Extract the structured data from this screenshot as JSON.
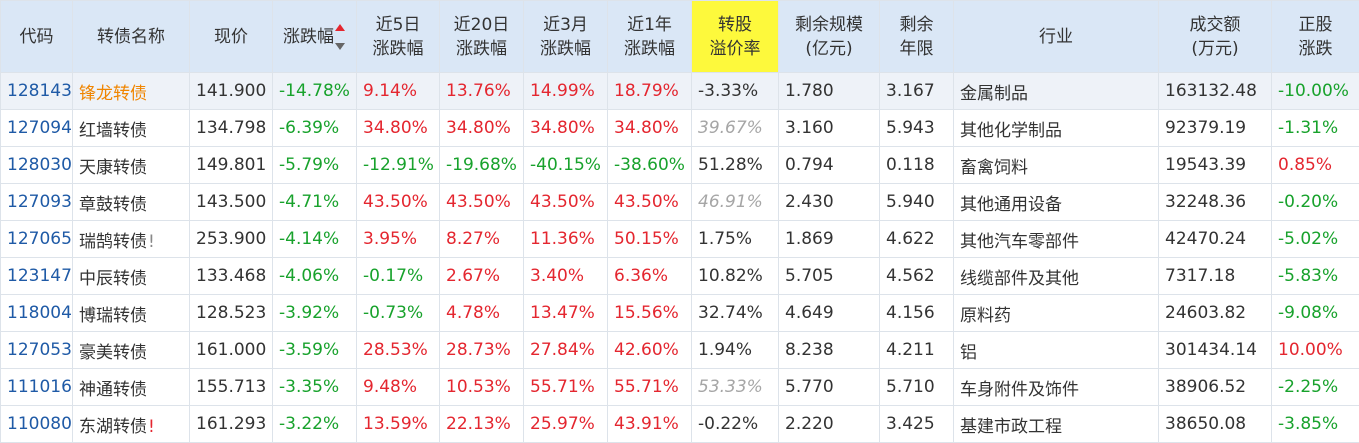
{
  "headers": [
    "代码",
    "转债名称",
    "现价",
    "涨跌幅",
    "近5日\n涨跌幅",
    "近20日\n涨跌幅",
    "近3月\n涨跌幅",
    "近1年\n涨跌幅",
    "转股\n溢价率",
    "剩余规模\n(亿元)",
    "剩余\n年限",
    "行业",
    "成交额\n(万元)",
    "正股\n涨跌"
  ],
  "colors": {
    "red": "#e4262f",
    "green": "#18a22c",
    "orange": "#f08500",
    "header_bg": "#dae7f6",
    "highlight": "#fdf93c"
  },
  "rows": [
    {
      "code": "128143",
      "name": "锋龙转债",
      "name_mark": "",
      "price": "141.900",
      "chg": "-14.78%",
      "chg5": "9.14%",
      "chg20": "13.76%",
      "chg3m": "14.99%",
      "chg1y": "18.79%",
      "premium": "-3.33%",
      "scale": "1.780",
      "years": "3.167",
      "industry": "金属制品",
      "turnover": "163132.48",
      "stock_chg": "-10.00%"
    },
    {
      "code": "127094",
      "name": "红墙转债",
      "name_mark": "",
      "price": "134.798",
      "chg": "-6.39%",
      "chg5": "34.80%",
      "chg20": "34.80%",
      "chg3m": "34.80%",
      "chg1y": "34.80%",
      "premium": "39.67%",
      "scale": "3.160",
      "years": "5.943",
      "industry": "其他化学制品",
      "turnover": "92379.19",
      "stock_chg": "-1.31%"
    },
    {
      "code": "128030",
      "name": "天康转债",
      "name_mark": "",
      "price": "149.801",
      "chg": "-5.79%",
      "chg5": "-12.91%",
      "chg20": "-19.68%",
      "chg3m": "-40.15%",
      "chg1y": "-38.60%",
      "premium": "51.28%",
      "scale": "0.794",
      "years": "0.118",
      "industry": "畜禽饲料",
      "turnover": "19543.39",
      "stock_chg": "0.85%"
    },
    {
      "code": "127093",
      "name": "章鼓转债",
      "name_mark": "",
      "price": "143.500",
      "chg": "-4.71%",
      "chg5": "43.50%",
      "chg20": "43.50%",
      "chg3m": "43.50%",
      "chg1y": "43.50%",
      "premium": "46.91%",
      "scale": "2.430",
      "years": "5.940",
      "industry": "其他通用设备",
      "turnover": "32248.36",
      "stock_chg": "-0.20%"
    },
    {
      "code": "127065",
      "name": "瑞鹄转债",
      "name_mark": "!",
      "price": "253.900",
      "chg": "-4.14%",
      "chg5": "3.95%",
      "chg20": "8.27%",
      "chg3m": "11.36%",
      "chg1y": "50.15%",
      "premium": "1.75%",
      "scale": "1.869",
      "years": "4.622",
      "industry": "其他汽车零部件",
      "turnover": "42470.24",
      "stock_chg": "-5.02%"
    },
    {
      "code": "123147",
      "name": "中辰转债",
      "name_mark": "",
      "price": "133.468",
      "chg": "-4.06%",
      "chg5": "-0.17%",
      "chg20": "2.67%",
      "chg3m": "3.40%",
      "chg1y": "6.36%",
      "premium": "10.82%",
      "scale": "5.705",
      "years": "4.562",
      "industry": "线缆部件及其他",
      "turnover": "7317.18",
      "stock_chg": "-5.83%"
    },
    {
      "code": "118004",
      "name": "博瑞转债",
      "name_mark": "",
      "price": "128.523",
      "chg": "-3.92%",
      "chg5": "-0.73%",
      "chg20": "4.78%",
      "chg3m": "13.47%",
      "chg1y": "15.56%",
      "premium": "32.74%",
      "scale": "4.649",
      "years": "4.156",
      "industry": "原料药",
      "turnover": "24603.82",
      "stock_chg": "-9.08%"
    },
    {
      "code": "127053",
      "name": "豪美转债",
      "name_mark": "",
      "price": "161.000",
      "chg": "-3.59%",
      "chg5": "28.53%",
      "chg20": "28.73%",
      "chg3m": "27.84%",
      "chg1y": "42.60%",
      "premium": "1.94%",
      "scale": "8.238",
      "years": "4.211",
      "industry": "铝",
      "turnover": "301434.14",
      "stock_chg": "10.00%"
    },
    {
      "code": "111016",
      "name": "神通转债",
      "name_mark": "",
      "price": "155.713",
      "chg": "-3.35%",
      "chg5": "9.48%",
      "chg20": "10.53%",
      "chg3m": "55.71%",
      "chg1y": "55.71%",
      "premium": "53.33%",
      "scale": "5.770",
      "years": "5.710",
      "industry": "车身附件及饰件",
      "turnover": "38906.52",
      "stock_chg": "-2.25%"
    },
    {
      "code": "110080",
      "name": "东湖转债",
      "name_mark": "!",
      "price": "161.293",
      "chg": "-3.22%",
      "chg5": "13.59%",
      "chg20": "22.13%",
      "chg3m": "25.97%",
      "chg1y": "43.91%",
      "premium": "-0.22%",
      "scale": "2.220",
      "years": "3.425",
      "industry": "基建市政工程",
      "turnover": "38650.08",
      "stock_chg": "-3.85%"
    }
  ]
}
